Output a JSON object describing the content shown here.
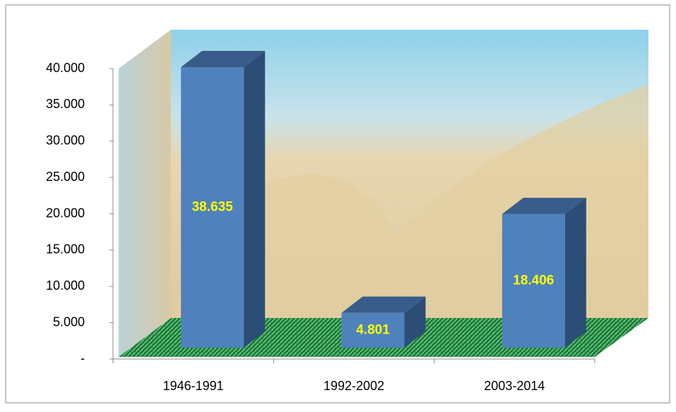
{
  "chart_data": {
    "type": "bar3d",
    "categories": [
      "1946-1991",
      "1992-2002",
      "2003-2014"
    ],
    "values": [
      38635,
      4801,
      18406
    ],
    "value_labels": [
      "38.635",
      "4.801",
      "18.406"
    ],
    "color": "#4f81bd",
    "ylim": [
      0,
      40000
    ],
    "yticks": [
      {
        "value": 0,
        "label": "-"
      },
      {
        "value": 5000,
        "label": "5.000"
      },
      {
        "value": 10000,
        "label": "10.000"
      },
      {
        "value": 15000,
        "label": "15.000"
      },
      {
        "value": 20000,
        "label": "20.000"
      },
      {
        "value": 25000,
        "label": "25.000"
      },
      {
        "value": 30000,
        "label": "30.000"
      },
      {
        "value": 35000,
        "label": "35.000"
      },
      {
        "value": 40000,
        "label": "40.000"
      }
    ]
  }
}
